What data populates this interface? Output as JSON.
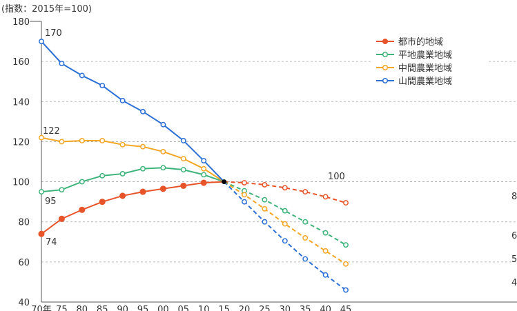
{
  "chart_data": {
    "type": "line",
    "unit_label": "(指数：2015年=100)",
    "ylim": [
      40,
      180
    ],
    "y_ticks": [
      "40",
      "60",
      "80",
      "100",
      "120",
      "140",
      "160",
      "180"
    ],
    "x_ticks": [
      "70年",
      "75",
      "80",
      "85",
      "90",
      "95",
      "00",
      "05",
      "10",
      "15",
      "20",
      "25",
      "30",
      "35",
      "40",
      "45"
    ],
    "grid": "horizontal dashed",
    "legend_placement": "top-right",
    "solid_segment": "1970–2015 (actual)",
    "dashed_segment": "2015–2045 (projection)",
    "series": [
      {
        "name": "都市的地域",
        "color": "#e8542a",
        "values": [
          74,
          81.5,
          86,
          90,
          93,
          95,
          96.5,
          98,
          99.5,
          100,
          99.5,
          98.5,
          97,
          95,
          92.5,
          89.5
        ]
      },
      {
        "name": "平地農業地域",
        "color": "#3db37a",
        "values": [
          95,
          96,
          100,
          103,
          104,
          106.5,
          107,
          106,
          103.5,
          100,
          95.5,
          91,
          85.5,
          80,
          74.5,
          68.5
        ]
      },
      {
        "name": "中間農業地域",
        "color": "#f5a623",
        "values": [
          122,
          120,
          120.5,
          120.5,
          118.5,
          117.5,
          115,
          111.5,
          106.5,
          100,
          93.5,
          86.5,
          79,
          72,
          65.5,
          59
        ]
      },
      {
        "name": "山間農業地域",
        "color": "#2a6fd6",
        "values": [
          170,
          159,
          153,
          148,
          140.5,
          135,
          128.5,
          120.5,
          110.5,
          100,
          90,
          80,
          70.5,
          61.5,
          53.5,
          46
        ]
      }
    ],
    "value_labels": [
      {
        "text": "170"
      },
      {
        "text": "122"
      },
      {
        "text": "95"
      },
      {
        "text": "74"
      },
      {
        "text": "100"
      },
      {
        "text": "8"
      },
      {
        "text": "6"
      },
      {
        "text": "5"
      },
      {
        "text": "4"
      }
    ]
  }
}
